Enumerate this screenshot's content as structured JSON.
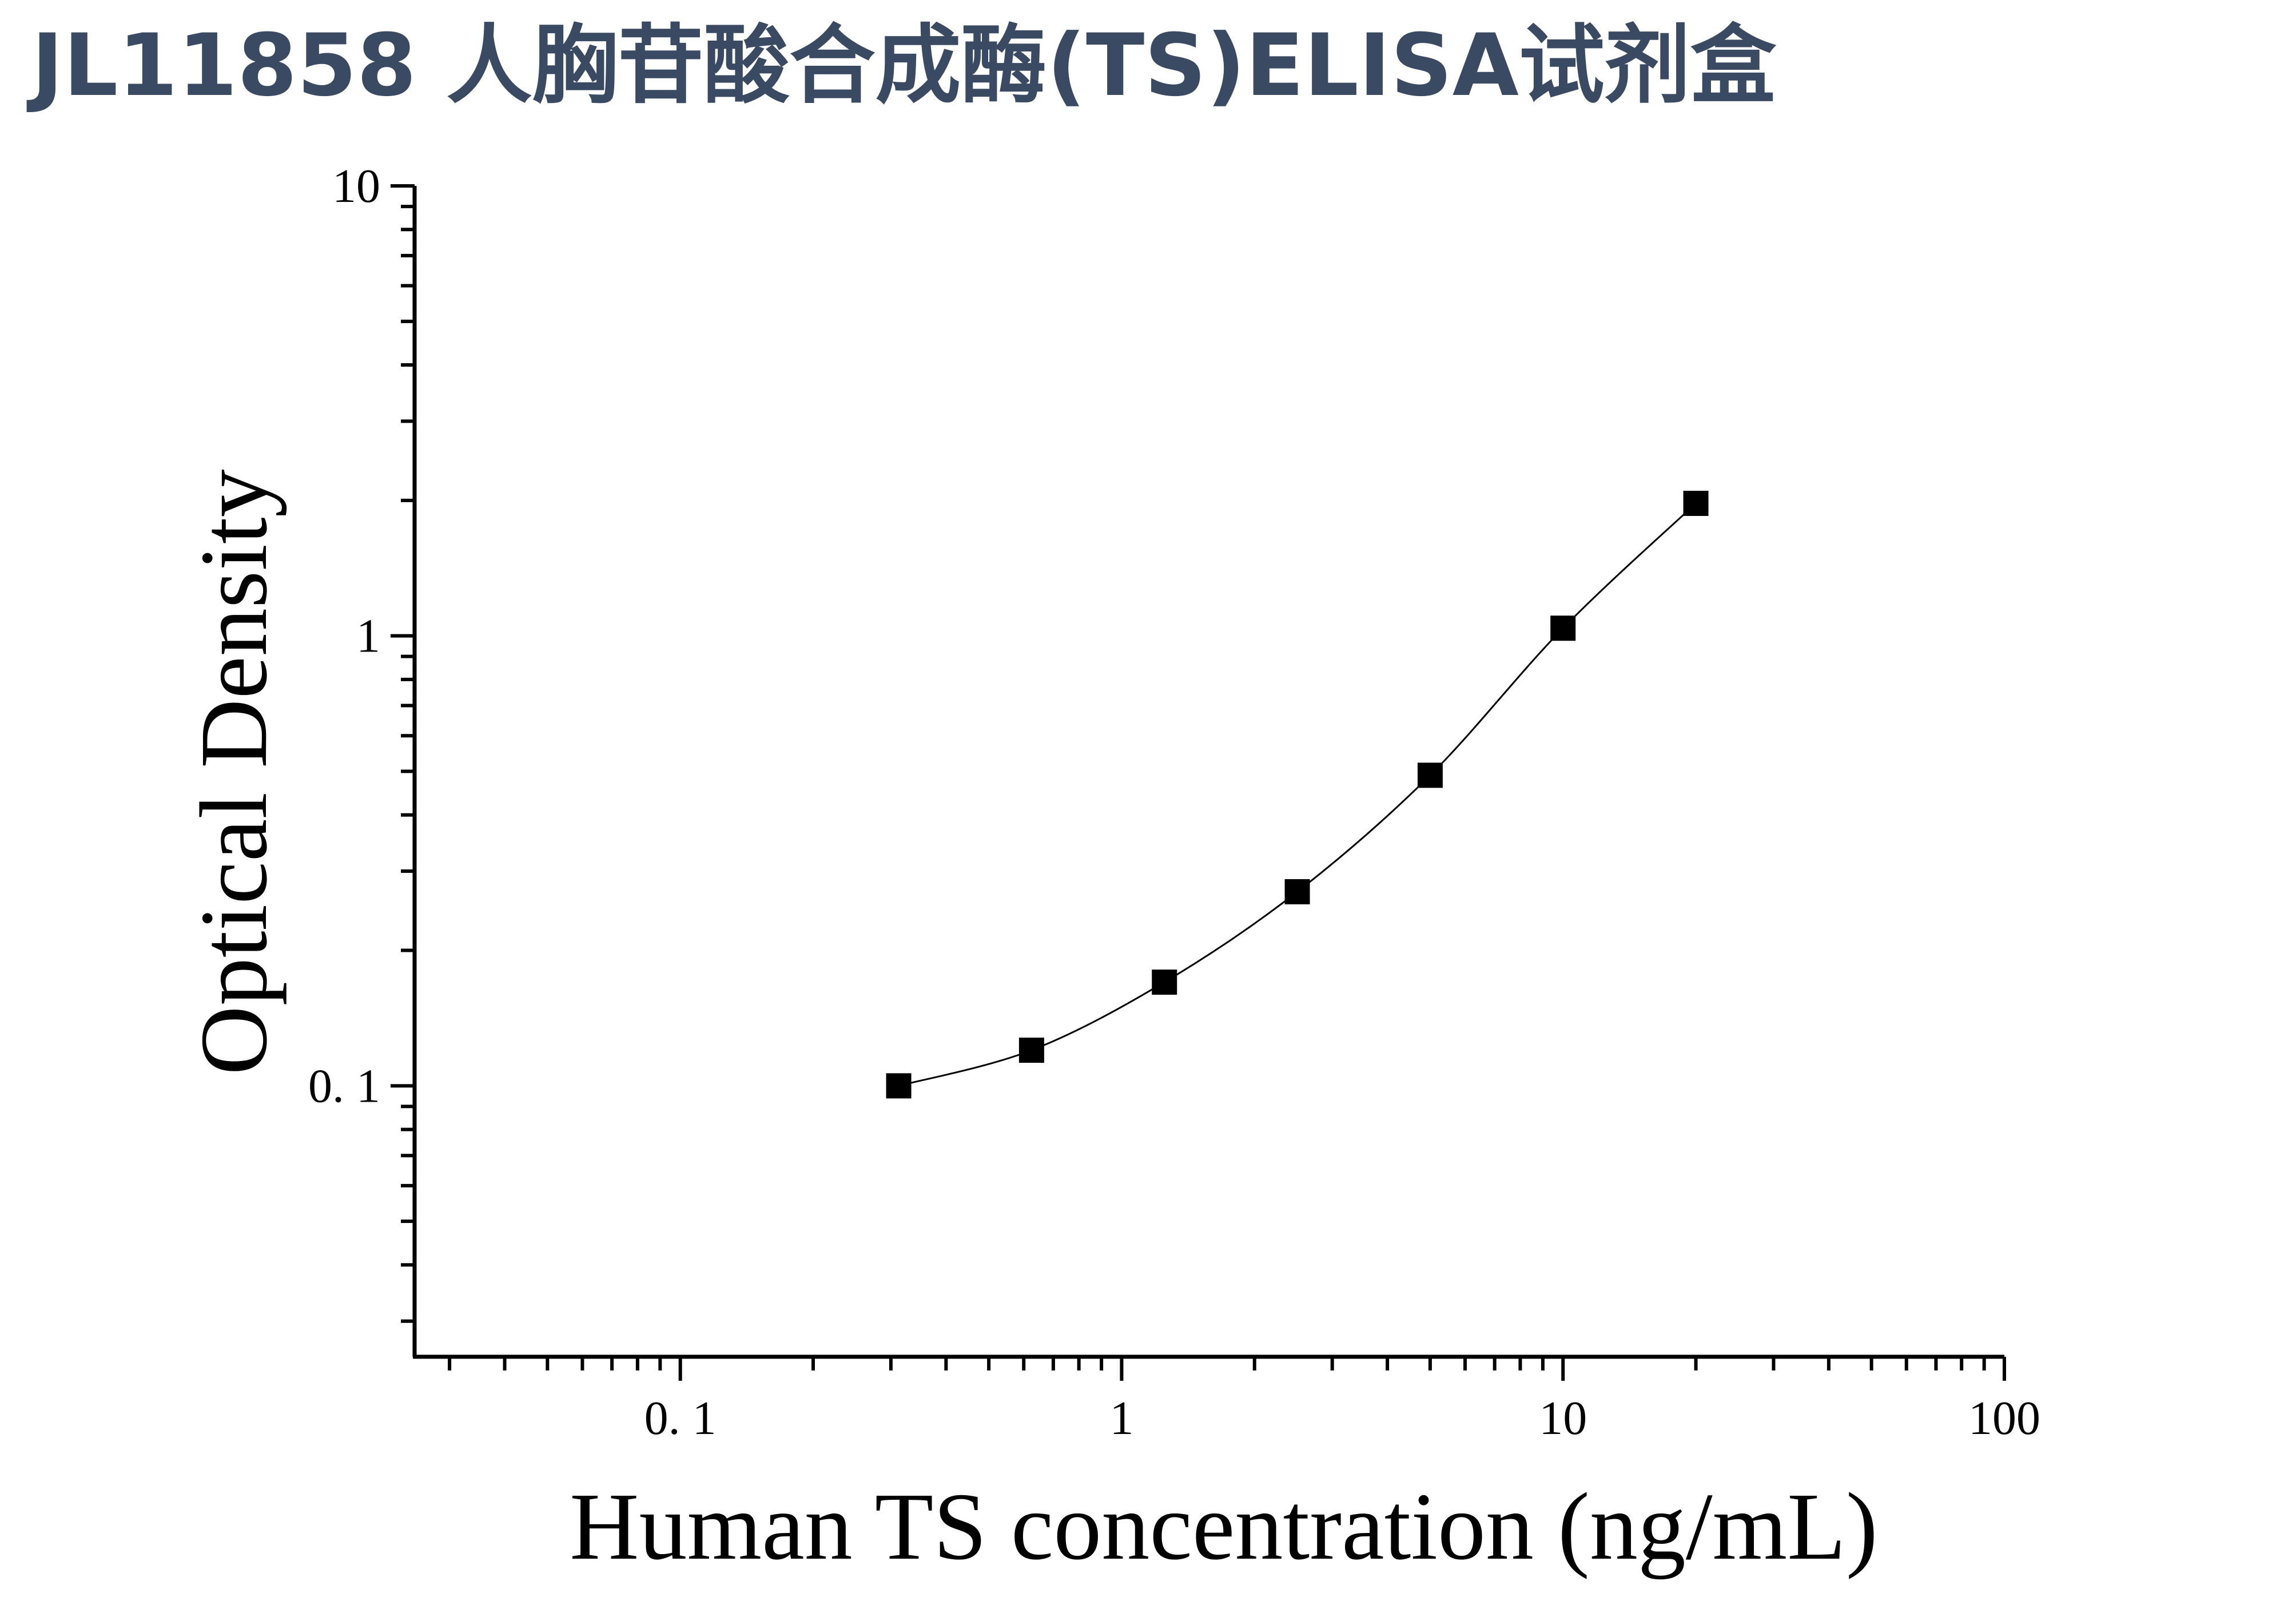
{
  "title": "JL11858 人胸苷酸合成酶(TS)ELISA试剂盒",
  "chart_data": {
    "type": "scatter",
    "title": "",
    "xlabel": "Human TS concentration (ng/mL)",
    "ylabel": "Optical Density",
    "x_scale": "log",
    "y_scale": "log",
    "xlim": [
      0.025,
      100
    ],
    "ylim": [
      0.025,
      10
    ],
    "x_ticks": [
      {
        "value": 0.1,
        "label": "0. 1"
      },
      {
        "value": 1,
        "label": "1"
      },
      {
        "value": 10,
        "label": "10"
      },
      {
        "value": 100,
        "label": "100"
      }
    ],
    "y_ticks": [
      {
        "value": 0.1,
        "label": "0. 1"
      },
      {
        "value": 1,
        "label": "1"
      },
      {
        "value": 10,
        "label": "10"
      }
    ],
    "series": [
      {
        "marker": "square",
        "color": "#000000",
        "x": [
          0.3125,
          0.625,
          1.25,
          2.5,
          5,
          10,
          20
        ],
        "y": [
          0.1,
          0.12,
          0.17,
          0.27,
          0.49,
          1.04,
          1.97
        ]
      }
    ],
    "fit_curve": {
      "type": "smooth",
      "color": "#000000"
    },
    "grid": false,
    "legend": "none"
  }
}
